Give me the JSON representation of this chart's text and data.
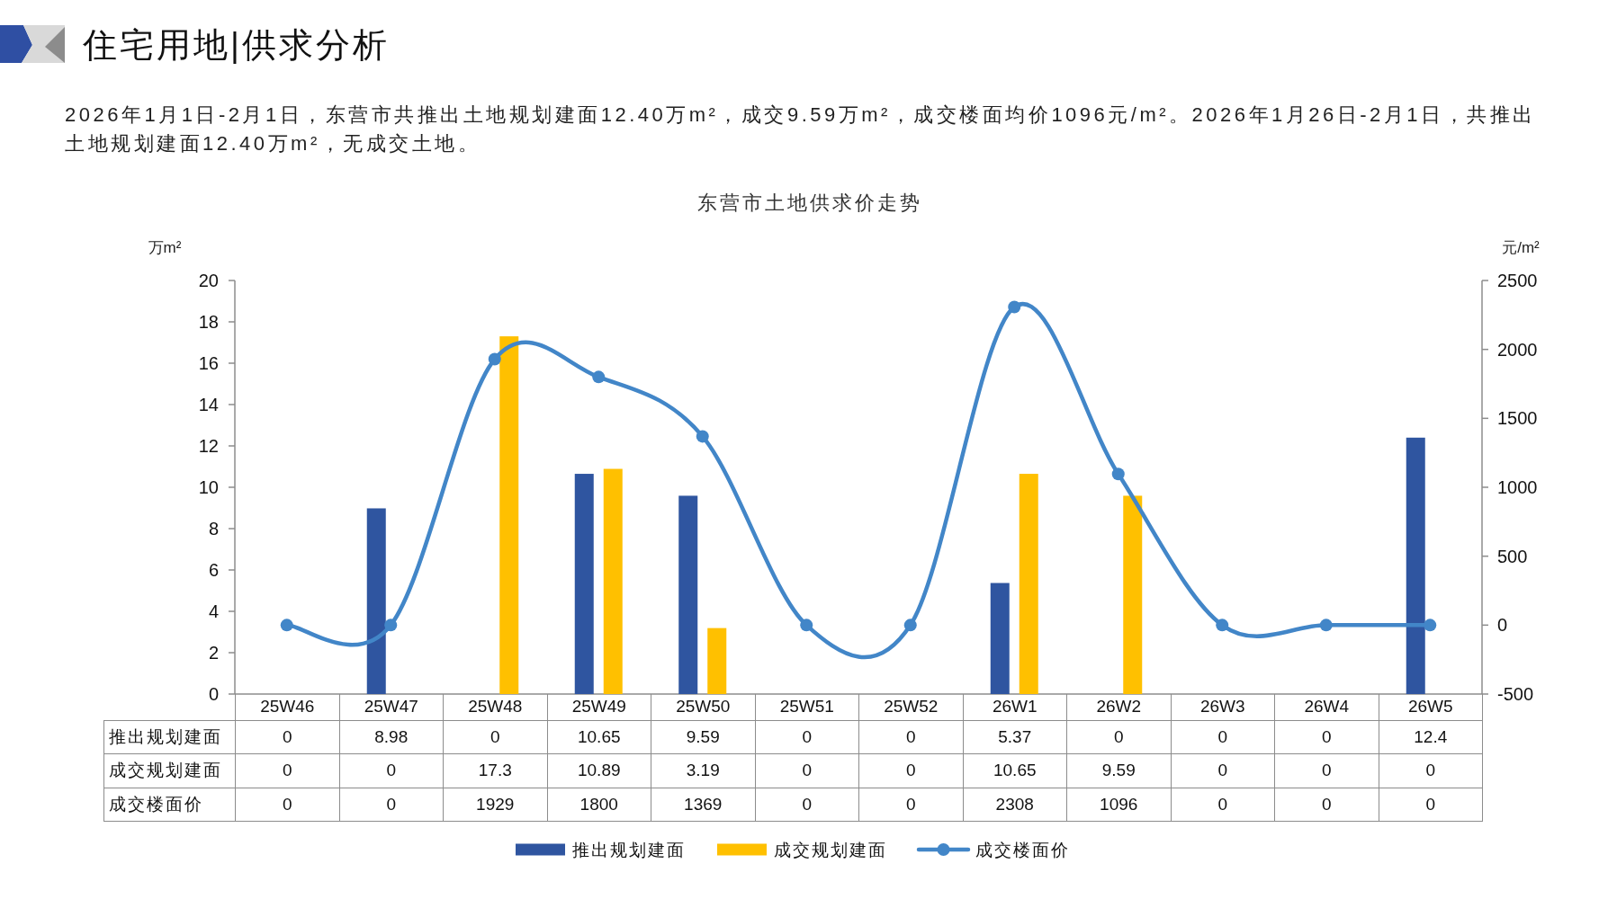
{
  "chart_data": {
    "type": "bar",
    "title": "东营市土地供求价走势",
    "annotations": [
      "住宅用地|供求分析",
      "2026年1月1日-2月1日，东营市共推出土地规划建面12.40万m²，成交9.59万m²，成交楼面均价1096元/m²。2026年1月26日-2月1日，共推出土地规划建面12.40万m²，无成交土地。"
    ],
    "ylabel": "万m²",
    "y2label": "元/m²",
    "categories": [
      "25W46",
      "25W47",
      "25W48",
      "25W49",
      "25W50",
      "25W51",
      "25W52",
      "26W1",
      "26W2",
      "26W3",
      "26W4",
      "26W5"
    ],
    "series": [
      {
        "name": "推出规划建面",
        "color": "#2f55a0",
        "values": [
          0,
          8.98,
          0,
          10.65,
          9.59,
          0,
          0,
          5.37,
          0,
          0,
          0,
          12.4
        ]
      },
      {
        "name": "成交规划建面",
        "color": "#ffc000",
        "values": [
          0,
          0,
          17.3,
          10.89,
          3.19,
          0,
          0,
          10.65,
          9.59,
          0,
          0,
          0
        ]
      },
      {
        "name": "成交楼面价",
        "type": "line",
        "axis": "y2",
        "color": "#4286c8",
        "values": [
          0,
          0,
          1929,
          1800,
          1369,
          0,
          0,
          2308,
          1096,
          0,
          0,
          0
        ]
      }
    ],
    "ylim": [
      0,
      20
    ],
    "yticks": [
      0,
      2,
      4,
      6,
      8,
      10,
      12,
      14,
      16,
      18,
      20
    ],
    "y2lim": [
      -500,
      2500
    ],
    "y2ticks": [
      -500,
      0,
      500,
      1000,
      1500,
      2000,
      2500
    ],
    "data_labels": true,
    "legend": "bottom",
    "marker": "circle"
  }
}
